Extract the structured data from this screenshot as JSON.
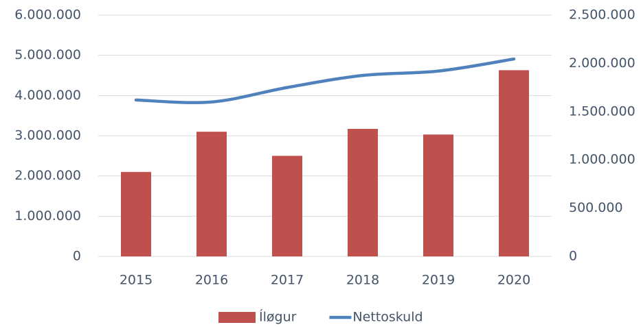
{
  "chart_data": {
    "type": "bar",
    "categories": [
      "2015",
      "2016",
      "2017",
      "2018",
      "2019",
      "2020"
    ],
    "series": [
      {
        "name": "Íløgur",
        "type": "bar",
        "color": "#c0504d",
        "values": [
          2100000,
          3100000,
          2500000,
          3170000,
          3030000,
          4630000
        ]
      },
      {
        "name": "Nettoskuld",
        "type": "line",
        "axis": "y2",
        "color": "#4f81bd",
        "values": [
          1620000,
          1600000,
          1750000,
          1875000,
          1920000,
          2045000
        ]
      }
    ],
    "ylim": [
      0,
      6000000
    ],
    "yticks": [
      0,
      {
        "value": 1000000,
        "label": "1.000.000"
      },
      {
        "value": 2000000,
        "label": "2.000.000"
      },
      {
        "value": 3000000,
        "label": "3.000.000"
      },
      {
        "value": 4000000,
        "label": "4.000.000"
      },
      {
        "value": 5000000,
        "label": "5.000.000"
      },
      {
        "value": 6000000,
        "label": "6.000.000"
      }
    ],
    "y2lim": [
      0,
      2500000
    ],
    "y2ticks": [
      0,
      {
        "value": 500000,
        "label": "500.000"
      },
      {
        "value": 1000000,
        "label": "1.000.000"
      },
      {
        "value": 1500000,
        "label": "1.500.000"
      },
      {
        "value": 2000000,
        "label": "2.000.000"
      },
      {
        "value": 2500000,
        "label": "2.500.000"
      }
    ],
    "grid": true,
    "legend": "bottom"
  }
}
